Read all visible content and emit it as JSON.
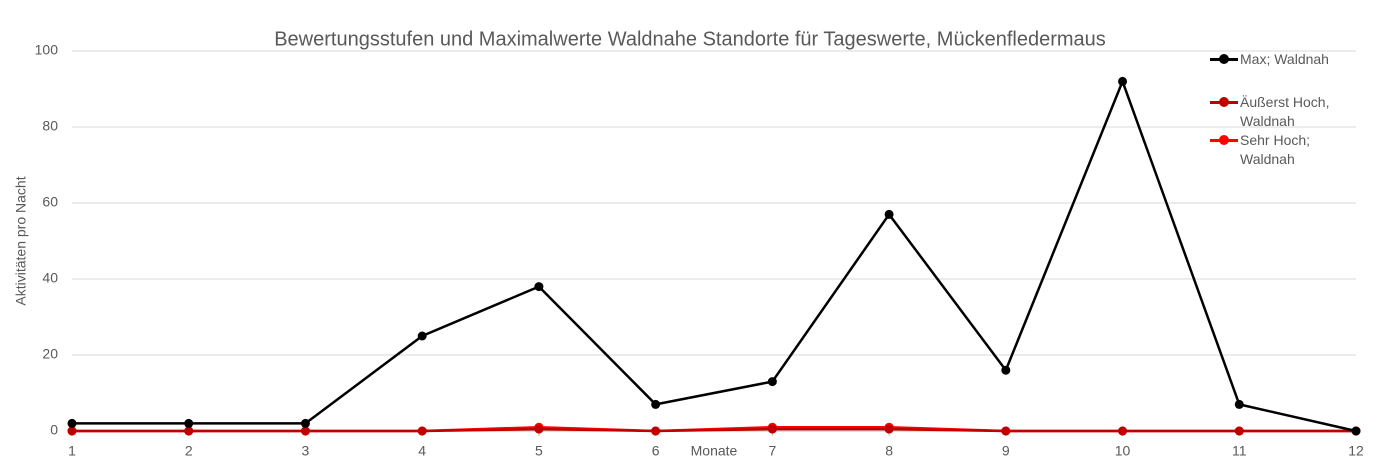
{
  "chart_data": {
    "type": "line",
    "title": "Bewertungsstufen und Maximalwerte Waldnahe Standorte für Tageswerte, Mückenfledermaus",
    "x_label": "Monate",
    "y_label": "Aktivitäten pro Nacht",
    "x": [
      1,
      2,
      3,
      4,
      5,
      6,
      7,
      8,
      9,
      10,
      11,
      12
    ],
    "series": [
      {
        "name": "Max; Waldnah",
        "color": "#000000",
        "values": [
          2,
          2,
          2,
          25,
          38,
          7,
          13,
          57,
          16,
          92,
          7,
          0
        ]
      },
      {
        "name": "Äußerst Hoch, Waldnah",
        "color": "#c00000",
        "values": [
          0,
          0,
          0,
          0,
          0.5,
          0,
          0.5,
          0.5,
          0,
          0,
          0,
          0
        ]
      },
      {
        "name": "Sehr Hoch; Waldnah",
        "color": "#ff0000",
        "values": [
          0,
          0,
          0,
          0,
          1,
          0,
          1,
          1,
          0,
          0,
          0,
          0
        ]
      }
    ],
    "xlim": [
      1,
      12
    ],
    "xticks": [
      1,
      2,
      3,
      4,
      5,
      6,
      7,
      8,
      9,
      10,
      11,
      12
    ],
    "ylim": [
      0,
      100
    ],
    "yticks": [
      0,
      20,
      40,
      60,
      80,
      100
    ],
    "grid": true,
    "legend": "top-right"
  }
}
